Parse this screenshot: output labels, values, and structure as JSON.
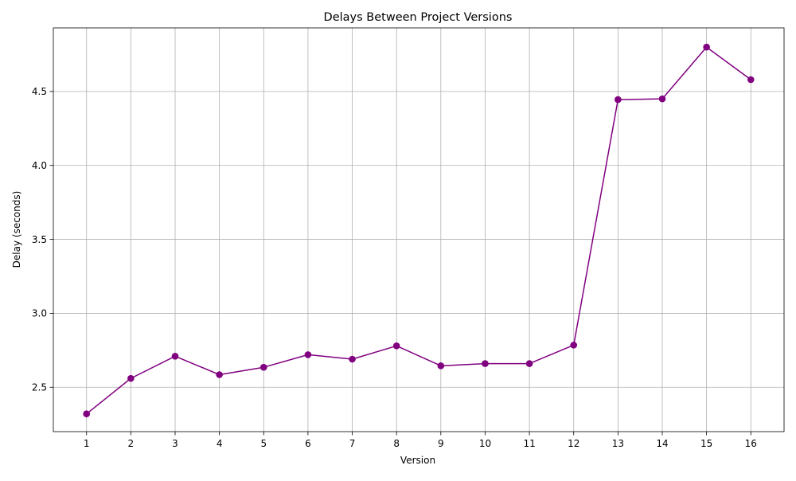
{
  "chart_data": {
    "type": "line",
    "title": "Delays Between Project Versions",
    "xlabel": "Version",
    "ylabel": "Delay (seconds)",
    "x": [
      1,
      2,
      3,
      4,
      5,
      6,
      7,
      8,
      9,
      10,
      11,
      12,
      13,
      14,
      15,
      16
    ],
    "series": [
      {
        "values": [
          2.32,
          2.56,
          2.71,
          2.585,
          2.635,
          2.72,
          2.69,
          2.78,
          2.645,
          2.66,
          2.66,
          2.785,
          4.445,
          4.45,
          4.8,
          4.58
        ],
        "color": "#800080",
        "marker": "circle"
      }
    ],
    "xlim": [
      0.25,
      16.75
    ],
    "ylim": [
      2.2,
      4.93
    ],
    "x_ticks": [
      "1",
      "2",
      "3",
      "4",
      "5",
      "6",
      "7",
      "8",
      "9",
      "10",
      "11",
      "12",
      "13",
      "14",
      "15",
      "16"
    ],
    "y_ticks": [
      "2.5",
      "3.0",
      "3.5",
      "4.0",
      "4.5"
    ],
    "grid": true,
    "legend": "none"
  }
}
